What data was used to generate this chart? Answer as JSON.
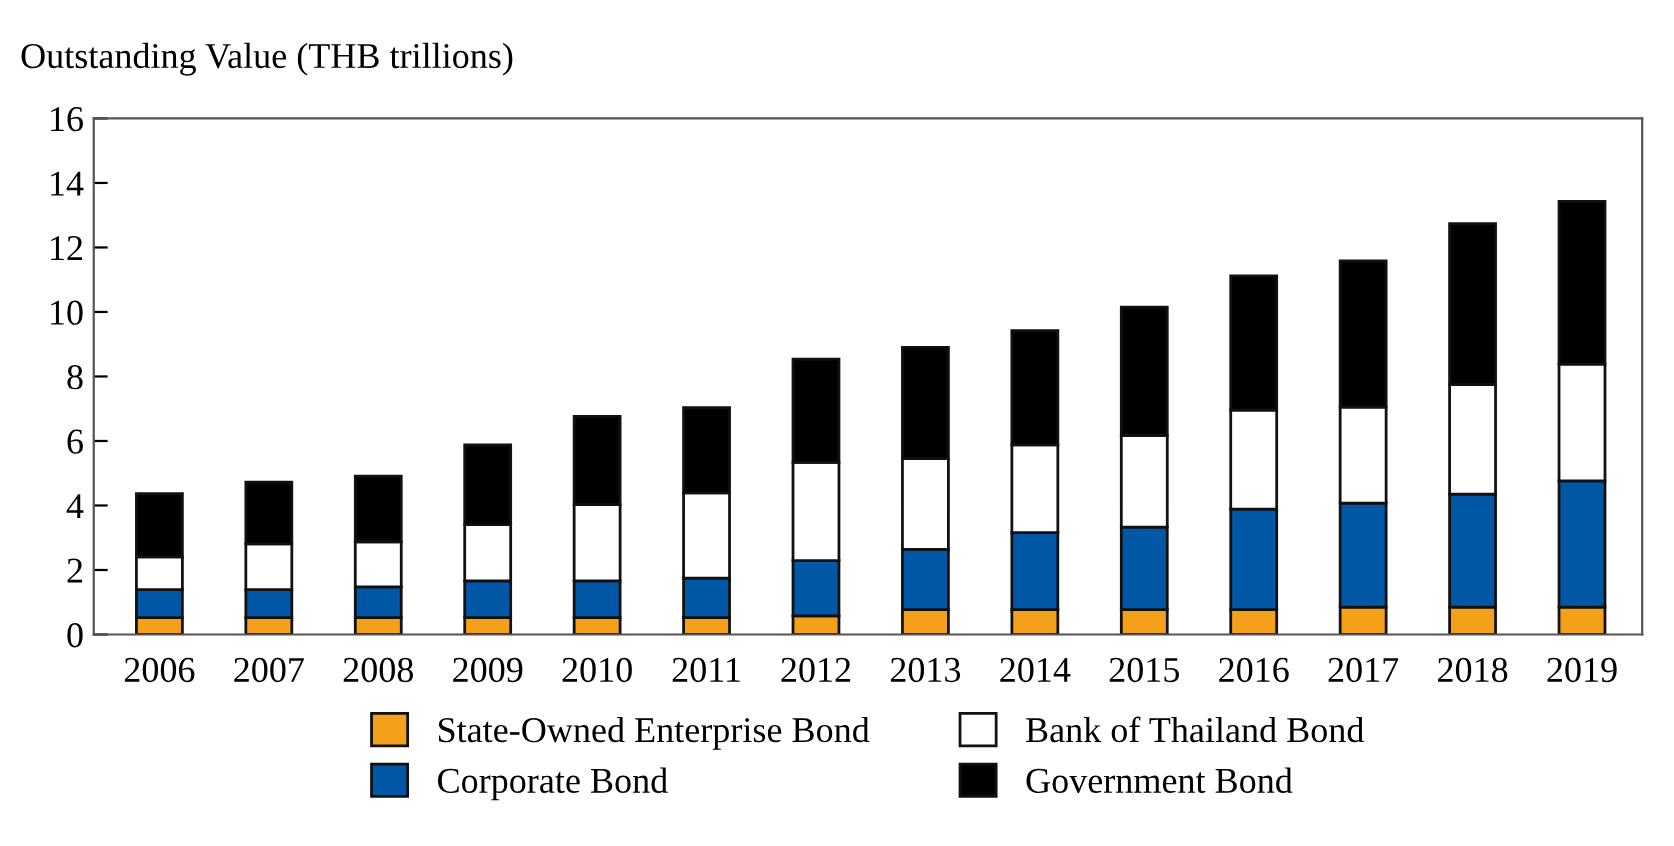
{
  "chart_data": {
    "type": "bar",
    "stacked": true,
    "ylabel": "Outstanding Value (THB trillions)",
    "categories": [
      "2006",
      "2007",
      "2008",
      "2009",
      "2010",
      "2011",
      "2012",
      "2013",
      "2014",
      "2015",
      "2016",
      "2017",
      "2018",
      "2019"
    ],
    "series": [
      {
        "name": "State-Owned Enterprise Bond",
        "color": "#f5a01a",
        "values": [
          0.52,
          0.52,
          0.52,
          0.52,
          0.52,
          0.52,
          0.58,
          0.77,
          0.77,
          0.77,
          0.77,
          0.85,
          0.85,
          0.85
        ]
      },
      {
        "name": "Corporate Bond",
        "color": "#0057a6",
        "values": [
          0.87,
          0.87,
          0.96,
          1.14,
          1.14,
          1.23,
          1.71,
          1.87,
          2.39,
          2.56,
          3.12,
          3.22,
          3.5,
          3.91
        ]
      },
      {
        "name": "Bank of Thailand Bond",
        "color": "#ffffff",
        "values": [
          1.02,
          1.42,
          1.39,
          1.75,
          2.37,
          2.64,
          3.05,
          2.81,
          2.72,
          2.84,
          3.07,
          2.98,
          3.4,
          3.62
        ]
      },
      {
        "name": "Government Bond",
        "color": "#000000",
        "values": [
          1.96,
          1.91,
          2.04,
          2.47,
          2.73,
          2.64,
          3.2,
          3.45,
          3.54,
          3.98,
          4.16,
          4.53,
          4.99,
          5.05
        ]
      }
    ],
    "ylim": [
      0,
      16
    ],
    "yticks": [
      0,
      2,
      4,
      6,
      8,
      10,
      12,
      14,
      16
    ],
    "grid": false,
    "legend": "bottom"
  }
}
